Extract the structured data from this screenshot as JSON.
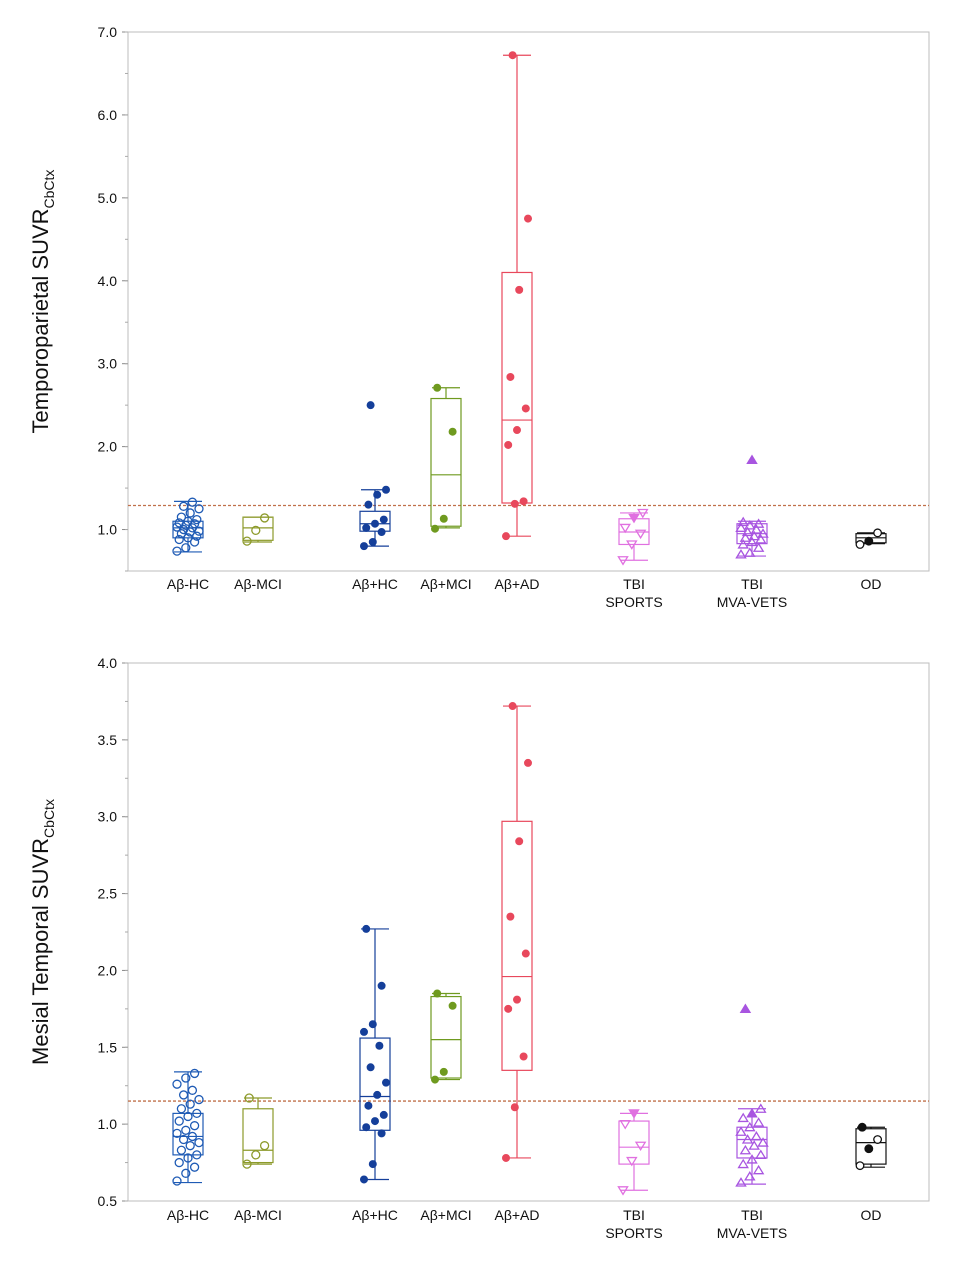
{
  "chart_data": [
    {
      "type": "box",
      "ylabel": "Temporoparietal SUVR",
      "ylabel_subscript": "CbCtx",
      "ylim": [
        0.5,
        7.0
      ],
      "yticks": [
        "7.0",
        "6.0",
        "5.0",
        "4.0",
        "3.0",
        "2.0",
        "1.0"
      ],
      "ytick_values": [
        7.0,
        6.0,
        5.0,
        4.0,
        3.0,
        2.0,
        1.0
      ],
      "threshold": 1.29,
      "threshold_color": "#c0704a",
      "grid": false,
      "groups": [
        {
          "label": "Aβ-HC",
          "color": "#1f5bb5",
          "marker": "circle-open",
          "box": {
            "whisker_low": 0.73,
            "q1": 0.9,
            "median": 1.02,
            "q3": 1.1,
            "whisker_high": 1.34
          },
          "points": [
            0.74,
            0.78,
            0.85,
            0.88,
            0.9,
            0.92,
            0.95,
            0.97,
            0.98,
            1.0,
            1.02,
            1.03,
            1.05,
            1.07,
            1.08,
            1.1,
            1.12,
            1.15,
            1.2,
            1.25,
            1.28,
            1.33
          ]
        },
        {
          "label": "Aβ-MCI",
          "color": "#8c9a2a",
          "marker": "circle-open",
          "box": {
            "whisker_low": 0.85,
            "q1": 0.87,
            "median": 1.02,
            "q3": 1.15,
            "whisker_high": 1.15
          },
          "points": [
            0.86,
            0.99,
            1.14
          ]
        },
        {
          "label": "Aβ+HC",
          "color": "#153f9a",
          "marker": "circle-filled",
          "box": {
            "whisker_low": 0.8,
            "q1": 0.98,
            "median": 1.07,
            "q3": 1.22,
            "whisker_high": 1.48
          },
          "points": [
            0.8,
            0.85,
            0.97,
            1.02,
            1.07,
            1.12,
            1.3,
            1.42,
            1.48,
            2.5
          ]
        },
        {
          "label": "Aβ+MCI",
          "color": "#6f9a1f",
          "marker": "circle-filled",
          "box": {
            "whisker_low": 1.02,
            "q1": 1.04,
            "median": 1.66,
            "q3": 2.58,
            "whisker_high": 2.71
          },
          "points": [
            1.01,
            1.13,
            2.18,
            2.71
          ]
        },
        {
          "label": "Aβ+AD",
          "color": "#e8485c",
          "marker": "circle-filled",
          "box": {
            "whisker_low": 0.92,
            "q1": 1.32,
            "median": 2.32,
            "q3": 4.1,
            "whisker_high": 6.72
          },
          "points": [
            0.92,
            1.31,
            1.34,
            2.02,
            2.2,
            2.46,
            2.84,
            3.89,
            4.75,
            6.72
          ]
        },
        {
          "label": "TBI\nSPORTS",
          "color": "#e070e0",
          "marker": "triangle-down-open",
          "box": {
            "whisker_low": 0.63,
            "q1": 0.82,
            "median": 0.97,
            "q3": 1.13,
            "whisker_high": 1.2
          },
          "points": [
            0.63,
            0.82,
            0.95,
            1.02,
            1.14,
            1.2
          ]
        },
        {
          "label": "TBI\nMVA-VETS",
          "color": "#a855e0",
          "marker": "triangle-up-open",
          "box": {
            "whisker_low": 0.68,
            "q1": 0.83,
            "median": 0.95,
            "q3": 1.07,
            "whisker_high": 1.1
          },
          "points": [
            0.7,
            0.72,
            0.78,
            0.82,
            0.85,
            0.88,
            0.9,
            0.92,
            0.95,
            0.97,
            1.0,
            1.02,
            1.05,
            1.07,
            1.09,
            1.84
          ]
        },
        {
          "label": "OD",
          "color": "#111111",
          "marker": "circle-mixed",
          "box": {
            "whisker_low": 0.83,
            "q1": 0.84,
            "median": 0.9,
            "q3": 0.95,
            "whisker_high": 0.96
          },
          "points": [
            0.82,
            0.86,
            0.96
          ]
        }
      ]
    },
    {
      "type": "box",
      "ylabel": "Mesial Temporal SUVR",
      "ylabel_subscript": "CbCtx",
      "ylim": [
        0.5,
        4.0
      ],
      "yticks": [
        "4.0",
        "3.5",
        "3.0",
        "2.5",
        "2.0",
        "1.5",
        "1.0",
        "0.5"
      ],
      "ytick_values": [
        4.0,
        3.5,
        3.0,
        2.5,
        2.0,
        1.5,
        1.0,
        0.5
      ],
      "threshold": 1.15,
      "threshold_color": "#c0704a",
      "grid": false,
      "groups": [
        {
          "label": "Aβ-HC",
          "color": "#1f5bb5",
          "marker": "circle-open",
          "box": {
            "whisker_low": 0.62,
            "q1": 0.8,
            "median": 0.92,
            "q3": 1.07,
            "whisker_high": 1.34
          },
          "points": [
            0.63,
            0.68,
            0.72,
            0.75,
            0.78,
            0.8,
            0.83,
            0.86,
            0.88,
            0.9,
            0.92,
            0.94,
            0.96,
            0.99,
            1.02,
            1.05,
            1.07,
            1.1,
            1.13,
            1.16,
            1.19,
            1.22,
            1.26,
            1.3,
            1.33
          ]
        },
        {
          "label": "Aβ-MCI",
          "color": "#8c9a2a",
          "marker": "circle-open",
          "box": {
            "whisker_low": 0.74,
            "q1": 0.75,
            "median": 0.83,
            "q3": 1.1,
            "whisker_high": 1.17
          },
          "points": [
            0.74,
            0.8,
            0.86,
            1.17
          ]
        },
        {
          "label": "Aβ+HC",
          "color": "#153f9a",
          "marker": "circle-filled",
          "box": {
            "whisker_low": 0.64,
            "q1": 0.96,
            "median": 1.18,
            "q3": 1.56,
            "whisker_high": 2.27
          },
          "points": [
            0.64,
            0.74,
            0.94,
            0.98,
            1.02,
            1.06,
            1.12,
            1.19,
            1.27,
            1.37,
            1.51,
            1.6,
            1.65,
            1.9,
            2.27
          ]
        },
        {
          "label": "Aβ+MCI",
          "color": "#6f9a1f",
          "marker": "circle-filled",
          "box": {
            "whisker_low": 1.29,
            "q1": 1.3,
            "median": 1.55,
            "q3": 1.83,
            "whisker_high": 1.85
          },
          "points": [
            1.29,
            1.34,
            1.77,
            1.85
          ]
        },
        {
          "label": "Aβ+AD",
          "color": "#e8485c",
          "marker": "circle-filled",
          "box": {
            "whisker_low": 0.78,
            "q1": 1.35,
            "median": 1.96,
            "q3": 2.97,
            "whisker_high": 3.72
          },
          "points": [
            0.78,
            1.11,
            1.44,
            1.75,
            1.81,
            2.11,
            2.35,
            2.84,
            3.35,
            3.72
          ]
        },
        {
          "label": "TBI\nSPORTS",
          "color": "#e070e0",
          "marker": "triangle-down-open",
          "box": {
            "whisker_low": 0.57,
            "q1": 0.74,
            "median": 0.85,
            "q3": 1.02,
            "whisker_high": 1.07
          },
          "points": [
            0.57,
            0.76,
            0.86,
            1.0,
            1.07
          ]
        },
        {
          "label": "TBI\nMVA-VETS",
          "color": "#a855e0",
          "marker": "triangle-up-open",
          "box": {
            "whisker_low": 0.61,
            "q1": 0.78,
            "median": 0.9,
            "q3": 0.98,
            "whisker_high": 1.1
          },
          "points": [
            0.62,
            0.66,
            0.7,
            0.74,
            0.77,
            0.8,
            0.83,
            0.86,
            0.88,
            0.9,
            0.92,
            0.95,
            0.98,
            1.01,
            1.04,
            1.07,
            1.1,
            1.75
          ]
        },
        {
          "label": "OD",
          "color": "#111111",
          "marker": "circle-mixed",
          "box": {
            "whisker_low": 0.72,
            "q1": 0.74,
            "median": 0.88,
            "q3": 0.97,
            "whisker_high": 0.98
          },
          "points": [
            0.73,
            0.84,
            0.9,
            0.98
          ]
        }
      ]
    }
  ]
}
